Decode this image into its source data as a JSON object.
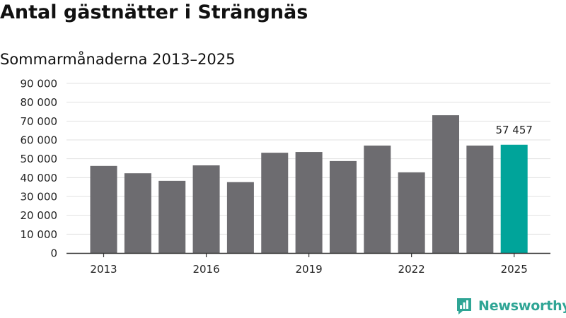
{
  "title": "Antal gästnätter i Strängnäs",
  "subtitle": "Sommarmånaderna 2013–2025",
  "brand": {
    "name": "Newsworthy",
    "color": "#2fa595",
    "icon": "newsworthy-logo-icon"
  },
  "colors": {
    "bar": "#6d6c70",
    "highlight": "#00a49a",
    "grid": "#e1e1e1",
    "axis": "#333333"
  },
  "chart_data": {
    "type": "bar",
    "categories": [
      "2013",
      "2014",
      "2015",
      "2016",
      "2017",
      "2018",
      "2019",
      "2020",
      "2021",
      "2022",
      "2023",
      "2024",
      "2025"
    ],
    "values": [
      46200,
      42300,
      38300,
      46500,
      37600,
      53200,
      53600,
      48800,
      57000,
      42800,
      73100,
      57000,
      57457
    ],
    "highlight_index": 12,
    "data_labels": [
      {
        "index": 12,
        "text": "57 457"
      }
    ],
    "xtick_labels": [
      {
        "index": 0,
        "text": "2013"
      },
      {
        "index": 3,
        "text": "2016"
      },
      {
        "index": 6,
        "text": "2019"
      },
      {
        "index": 9,
        "text": "2022"
      },
      {
        "index": 12,
        "text": "2025"
      }
    ],
    "yticks": [
      0,
      10000,
      20000,
      30000,
      40000,
      50000,
      60000,
      70000,
      80000,
      90000
    ],
    "ytick_labels": [
      "0",
      "10 000",
      "20 000",
      "30 000",
      "40 000",
      "50 000",
      "60 000",
      "70 000",
      "80 000",
      "90 000"
    ],
    "ylim": [
      0,
      90000
    ],
    "grid": true,
    "xlabel": "",
    "ylabel": ""
  }
}
